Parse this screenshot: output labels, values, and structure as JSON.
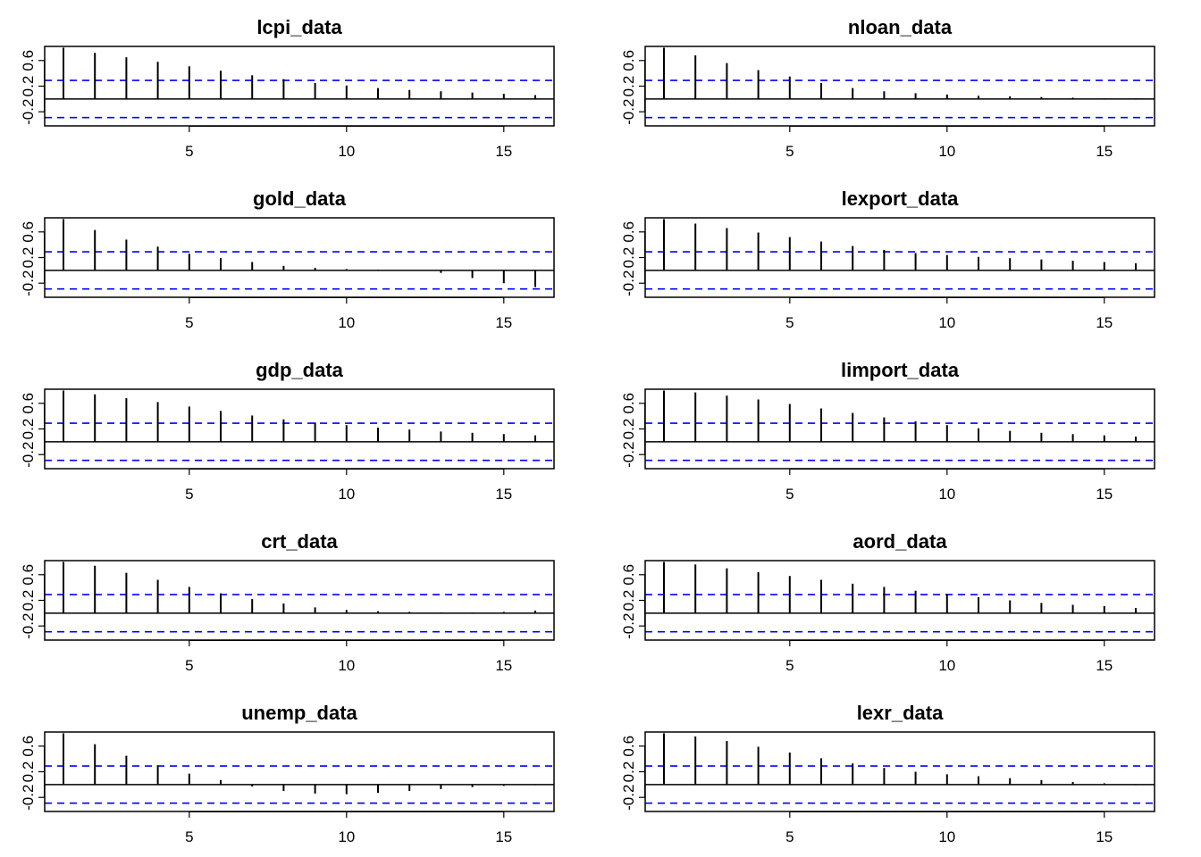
{
  "figure": {
    "title": "",
    "panels_layout": "5 rows x 2 columns"
  },
  "colors": {
    "bars": "#000000",
    "confidence_band": "#0000ff",
    "zero_line": "#000000",
    "frame": "#000000"
  },
  "chart_data": [
    {
      "type": "bar",
      "title": "lcpi_data",
      "lags": [
        1,
        2,
        3,
        4,
        5,
        6,
        7,
        8,
        9,
        10,
        11,
        12,
        13,
        14,
        15,
        16
      ],
      "values": [
        0.8,
        0.72,
        0.65,
        0.58,
        0.51,
        0.44,
        0.37,
        0.31,
        0.25,
        0.21,
        0.17,
        0.14,
        0.12,
        0.1,
        0.08,
        0.06
      ],
      "ylim": [
        -0.42,
        0.82
      ],
      "y_ticks": [
        "-0.2",
        "0.2",
        "0.6"
      ],
      "x_ticks": [
        "5",
        "10",
        "15"
      ],
      "ci_upper": 0.29,
      "ci_lower": -0.29
    },
    {
      "type": "bar",
      "title": "nloan_data",
      "lags": [
        1,
        2,
        3,
        4,
        5,
        6,
        7,
        8,
        9,
        10,
        11,
        12,
        13,
        14,
        15,
        16
      ],
      "values": [
        0.8,
        0.68,
        0.56,
        0.45,
        0.35,
        0.25,
        0.17,
        0.12,
        0.09,
        0.07,
        0.05,
        0.04,
        0.03,
        0.02,
        0.01,
        0.01
      ],
      "ylim": [
        -0.42,
        0.82
      ],
      "y_ticks": [
        "-0.2",
        "0.2",
        "0.6"
      ],
      "x_ticks": [
        "5",
        "10",
        "15"
      ],
      "ci_upper": 0.29,
      "ci_lower": -0.29
    },
    {
      "type": "bar",
      "title": "gold_data",
      "lags": [
        1,
        2,
        3,
        4,
        5,
        6,
        7,
        8,
        9,
        10,
        11,
        12,
        13,
        14,
        15,
        16
      ],
      "values": [
        0.8,
        0.63,
        0.48,
        0.37,
        0.26,
        0.19,
        0.13,
        0.07,
        0.04,
        0.02,
        0.01,
        0.0,
        -0.04,
        -0.12,
        -0.2,
        -0.26
      ],
      "ylim": [
        -0.42,
        0.82
      ],
      "y_ticks": [
        "-0.2",
        "0.2",
        "0.6"
      ],
      "x_ticks": [
        "5",
        "10",
        "15"
      ],
      "ci_upper": 0.29,
      "ci_lower": -0.29
    },
    {
      "type": "bar",
      "title": "lexport_data",
      "lags": [
        1,
        2,
        3,
        4,
        5,
        6,
        7,
        8,
        9,
        10,
        11,
        12,
        13,
        14,
        15,
        16
      ],
      "values": [
        0.8,
        0.73,
        0.66,
        0.59,
        0.52,
        0.45,
        0.38,
        0.32,
        0.27,
        0.24,
        0.21,
        0.19,
        0.17,
        0.15,
        0.13,
        0.11
      ],
      "ylim": [
        -0.42,
        0.82
      ],
      "y_ticks": [
        "-0.2",
        "0.2",
        "0.6"
      ],
      "x_ticks": [
        "5",
        "10",
        "15"
      ],
      "ci_upper": 0.29,
      "ci_lower": -0.29
    },
    {
      "type": "bar",
      "title": "gdp_data",
      "lags": [
        1,
        2,
        3,
        4,
        5,
        6,
        7,
        8,
        9,
        10,
        11,
        12,
        13,
        14,
        15,
        16
      ],
      "values": [
        0.8,
        0.74,
        0.68,
        0.62,
        0.55,
        0.48,
        0.41,
        0.35,
        0.3,
        0.26,
        0.22,
        0.19,
        0.16,
        0.14,
        0.12,
        0.1
      ],
      "ylim": [
        -0.42,
        0.82
      ],
      "y_ticks": [
        "-0.2",
        "0.2",
        "0.6"
      ],
      "x_ticks": [
        "5",
        "10",
        "15"
      ],
      "ci_upper": 0.29,
      "ci_lower": -0.29
    },
    {
      "type": "bar",
      "title": "limport_data",
      "lags": [
        1,
        2,
        3,
        4,
        5,
        6,
        7,
        8,
        9,
        10,
        11,
        12,
        13,
        14,
        15,
        16
      ],
      "values": [
        0.8,
        0.77,
        0.72,
        0.66,
        0.59,
        0.52,
        0.45,
        0.38,
        0.32,
        0.26,
        0.21,
        0.17,
        0.14,
        0.12,
        0.1,
        0.08
      ],
      "ylim": [
        -0.42,
        0.82
      ],
      "y_ticks": [
        "-0.2",
        "0.2",
        "0.6"
      ],
      "x_ticks": [
        "5",
        "10",
        "15"
      ],
      "ci_upper": 0.29,
      "ci_lower": -0.29
    },
    {
      "type": "bar",
      "title": "crt_data",
      "lags": [
        1,
        2,
        3,
        4,
        5,
        6,
        7,
        8,
        9,
        10,
        11,
        12,
        13,
        14,
        15,
        16
      ],
      "values": [
        0.8,
        0.74,
        0.63,
        0.52,
        0.41,
        0.31,
        0.22,
        0.15,
        0.09,
        0.05,
        0.03,
        0.02,
        0.01,
        0.01,
        0.02,
        0.04
      ],
      "ylim": [
        -0.42,
        0.82
      ],
      "y_ticks": [
        "-0.2",
        "0.2",
        "0.6"
      ],
      "x_ticks": [
        "5",
        "10",
        "15"
      ],
      "ci_upper": 0.29,
      "ci_lower": -0.29
    },
    {
      "type": "bar",
      "title": "aord_data",
      "lags": [
        1,
        2,
        3,
        4,
        5,
        6,
        7,
        8,
        9,
        10,
        11,
        12,
        13,
        14,
        15,
        16
      ],
      "values": [
        0.8,
        0.76,
        0.7,
        0.64,
        0.58,
        0.52,
        0.46,
        0.41,
        0.35,
        0.3,
        0.25,
        0.2,
        0.16,
        0.13,
        0.11,
        0.08
      ],
      "ylim": [
        -0.42,
        0.82
      ],
      "y_ticks": [
        "-0.2",
        "0.2",
        "0.6"
      ],
      "x_ticks": [
        "5",
        "10",
        "15"
      ],
      "ci_upper": 0.29,
      "ci_lower": -0.29
    },
    {
      "type": "bar",
      "title": "unemp_data",
      "lags": [
        1,
        2,
        3,
        4,
        5,
        6,
        7,
        8,
        9,
        10,
        11,
        12,
        13,
        14,
        15,
        16
      ],
      "values": [
        0.8,
        0.63,
        0.45,
        0.3,
        0.17,
        0.07,
        -0.03,
        -0.1,
        -0.14,
        -0.15,
        -0.13,
        -0.1,
        -0.07,
        -0.04,
        -0.02,
        -0.01
      ],
      "ylim": [
        -0.42,
        0.82
      ],
      "y_ticks": [
        "-0.2",
        "0.2",
        "0.6"
      ],
      "x_ticks": [
        "5",
        "10",
        "15"
      ],
      "ci_upper": 0.29,
      "ci_lower": -0.29
    },
    {
      "type": "bar",
      "title": "lexr_data",
      "lags": [
        1,
        2,
        3,
        4,
        5,
        6,
        7,
        8,
        9,
        10,
        11,
        12,
        13,
        14,
        15,
        16
      ],
      "values": [
        0.8,
        0.75,
        0.68,
        0.59,
        0.5,
        0.41,
        0.33,
        0.26,
        0.2,
        0.16,
        0.13,
        0.1,
        0.07,
        0.04,
        0.02,
        -0.01
      ],
      "ylim": [
        -0.42,
        0.82
      ],
      "y_ticks": [
        "-0.2",
        "0.2",
        "0.6"
      ],
      "x_ticks": [
        "5",
        "10",
        "15"
      ],
      "ci_upper": 0.29,
      "ci_lower": -0.29
    }
  ]
}
